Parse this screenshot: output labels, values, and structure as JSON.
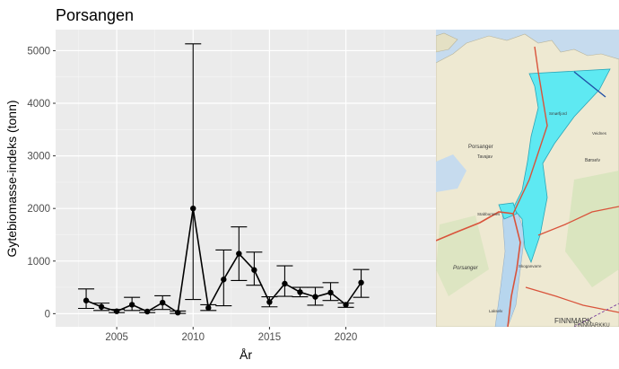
{
  "chart_data": {
    "type": "line",
    "title": "Porsangen",
    "xlabel": "År",
    "ylabel": "Gytebiomasse-indeks (tonn)",
    "xlim": [
      2001.0,
      2025.9
    ],
    "ylim": [
      -250,
      5400
    ],
    "x_ticks": [
      2005,
      2010,
      2015,
      2020
    ],
    "y_ticks": [
      0,
      1000,
      2000,
      3000,
      4000,
      5000
    ],
    "grid": true,
    "series": [
      {
        "points": [
          {
            "x": 2003,
            "y": 250,
            "low": 100,
            "high": 470
          },
          {
            "x": 2004,
            "y": 130,
            "low": 60,
            "high": 200
          },
          {
            "x": 2005,
            "y": 45,
            "low": 20,
            "high": 80
          },
          {
            "x": 2006,
            "y": 170,
            "low": 60,
            "high": 310
          },
          {
            "x": 2007,
            "y": 40,
            "low": 20,
            "high": 70
          },
          {
            "x": 2008,
            "y": 210,
            "low": 80,
            "high": 340
          },
          {
            "x": 2009,
            "y": 20,
            "low": 5,
            "high": 50
          },
          {
            "x": 2010,
            "y": 2000,
            "low": 270,
            "high": 5130
          },
          {
            "x": 2011,
            "y": 110,
            "low": 60,
            "high": 170
          },
          {
            "x": 2012,
            "y": 650,
            "low": 150,
            "high": 1210
          },
          {
            "x": 2013,
            "y": 1140,
            "low": 630,
            "high": 1650
          },
          {
            "x": 2014,
            "y": 830,
            "low": 540,
            "high": 1170
          },
          {
            "x": 2015,
            "y": 220,
            "low": 130,
            "high": 320
          },
          {
            "x": 2016,
            "y": 570,
            "low": 330,
            "high": 910
          },
          {
            "x": 2017,
            "y": 410,
            "low": 320,
            "high": 500
          },
          {
            "x": 2018,
            "y": 320,
            "low": 160,
            "high": 500
          },
          {
            "x": 2019,
            "y": 400,
            "low": 250,
            "high": 590
          },
          {
            "x": 2020,
            "y": 170,
            "low": 120,
            "high": 200
          },
          {
            "x": 2021,
            "y": 590,
            "low": 310,
            "high": 840
          }
        ]
      }
    ]
  },
  "map_inset": {
    "colors": {
      "sea": "#c6dbee",
      "land": "#eee9d2",
      "highlight": "#5ee9f2",
      "road": "#d9533b"
    },
    "place_labels": [
      "Porsanger",
      "Tavajav",
      "Stabbursnes",
      "Skoganvarre",
      "Lakselv",
      "Porsanger",
      "Børselv",
      "Smørfjord",
      "Veidnes",
      "FINNMARK",
      "FINNMARKKU"
    ]
  }
}
